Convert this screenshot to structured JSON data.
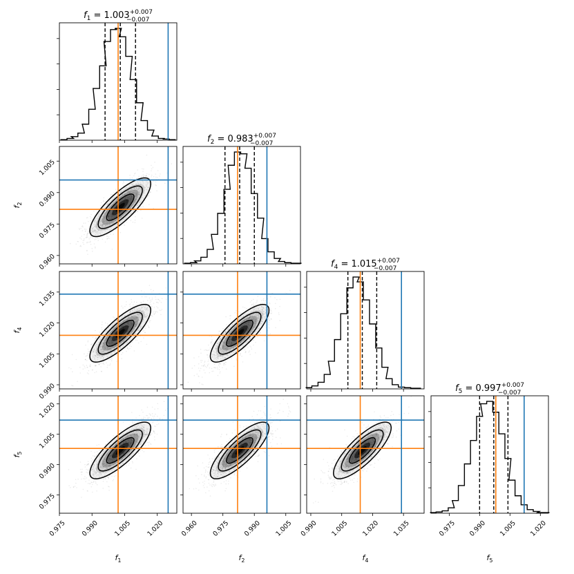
{
  "chart_data": {
    "type": "corner",
    "parameters": [
      "f1",
      "f2",
      "f4",
      "f5"
    ],
    "param_labels": [
      {
        "base": "f",
        "sub": "1"
      },
      {
        "base": "f",
        "sub": "2"
      },
      {
        "base": "f",
        "sub": "4"
      },
      {
        "base": "f",
        "sub": "5"
      }
    ],
    "titles": [
      {
        "base": "f",
        "sub": "1",
        "eq": " = 1.003",
        "plus": "+0.007",
        "minus": "−0.007"
      },
      {
        "base": "f",
        "sub": "2",
        "eq": " = 0.983",
        "plus": "+0.007",
        "minus": "−0.007"
      },
      {
        "base": "f",
        "sub": "4",
        "eq": " = 1.015",
        "plus": "+0.007",
        "minus": "−0.007"
      },
      {
        "base": "f",
        "sub": "5",
        "eq": " = 0.997",
        "plus": "+0.007",
        "minus": "−0.007"
      }
    ],
    "ranges": [
      [
        0.975,
        1.029
      ],
      [
        0.956,
        1.012
      ],
      [
        0.988,
        1.045
      ],
      [
        0.966,
        1.024
      ]
    ],
    "ticks": [
      {
        "values": [
          0.975,
          0.99,
          1.005,
          1.02
        ],
        "labels": [
          "0.975",
          "0.990",
          "1.005",
          "1.020"
        ]
      },
      {
        "values": [
          0.96,
          0.975,
          0.99,
          1.005
        ],
        "labels": [
          "0.960",
          "0.975",
          "0.990",
          "1.005"
        ]
      },
      {
        "values": [
          0.99,
          1.005,
          1.02,
          1.035
        ],
        "labels": [
          "0.990",
          "1.005",
          "1.020",
          "1.035"
        ]
      },
      {
        "values": [
          0.975,
          0.99,
          1.005,
          1.02
        ],
        "labels": [
          "0.975",
          "0.990",
          "1.005",
          "1.020"
        ]
      }
    ],
    "medians": [
      1.003,
      0.983,
      1.015,
      0.997
    ],
    "lower_quantiles": [
      0.996,
      0.976,
      1.008,
      0.99
    ],
    "upper_quantiles": [
      1.01,
      0.99,
      1.022,
      1.004
    ],
    "truths_orange": [
      1.002,
      0.982,
      1.014,
      0.998
    ],
    "truths_blue": [
      1.025,
      0.996,
      1.034,
      1.012
    ],
    "posterior_sd": [
      0.007,
      0.007,
      0.007,
      0.007
    ],
    "correlation": 0.8,
    "histograms": [
      {
        "bin_centers": [
          0.977,
          0.98,
          0.982,
          0.985,
          0.987,
          0.99,
          0.992,
          0.995,
          0.997,
          1.0,
          1.002,
          1.004,
          1.007,
          1.009,
          1.012,
          1.014,
          1.017,
          1.019,
          1.022,
          1.024,
          1.027
        ],
        "counts": [
          1,
          3,
          6,
          12,
          27,
          52,
          87,
          125,
          166,
          186,
          188,
          174,
          141,
          102,
          63,
          33,
          17,
          7,
          3,
          2,
          1
        ]
      },
      {
        "bin_centers": [
          0.958,
          0.961,
          0.963,
          0.966,
          0.969,
          0.971,
          0.974,
          0.977,
          0.979,
          0.982,
          0.985,
          0.987,
          0.99,
          0.993,
          0.995,
          0.998,
          1.001,
          1.003,
          1.006,
          1.009,
          1.011
        ],
        "counts": [
          1,
          2,
          5,
          11,
          24,
          49,
          84,
          124,
          164,
          186,
          183,
          159,
          117,
          76,
          42,
          20,
          9,
          4,
          2,
          1,
          1
        ]
      },
      {
        "bin_centers": [
          0.989,
          0.992,
          0.995,
          0.998,
          1.0,
          1.003,
          1.006,
          1.009,
          1.012,
          1.014,
          1.017,
          1.02,
          1.023,
          1.026,
          1.028,
          1.031,
          1.034,
          1.037,
          1.04,
          1.042
        ],
        "counts": [
          2,
          5,
          11,
          24,
          46,
          82,
          125,
          168,
          186,
          178,
          148,
          108,
          68,
          36,
          17,
          7,
          3,
          2,
          1,
          1
        ]
      },
      {
        "bin_centers": [
          0.967,
          0.97,
          0.973,
          0.976,
          0.978,
          0.981,
          0.984,
          0.987,
          0.99,
          0.992,
          0.995,
          0.998,
          1.001,
          1.004,
          1.006,
          1.009,
          1.012,
          1.015,
          1.018,
          1.02,
          1.023
        ],
        "counts": [
          1,
          2,
          4,
          9,
          21,
          46,
          82,
          121,
          161,
          182,
          186,
          168,
          132,
          91,
          55,
          29,
          14,
          6,
          3,
          1,
          1
        ]
      }
    ],
    "colors": {
      "truth_orange": "#ff7f0e",
      "truth_blue": "#1f77b4",
      "hist": "#000000",
      "quantile": "#000000"
    }
  }
}
